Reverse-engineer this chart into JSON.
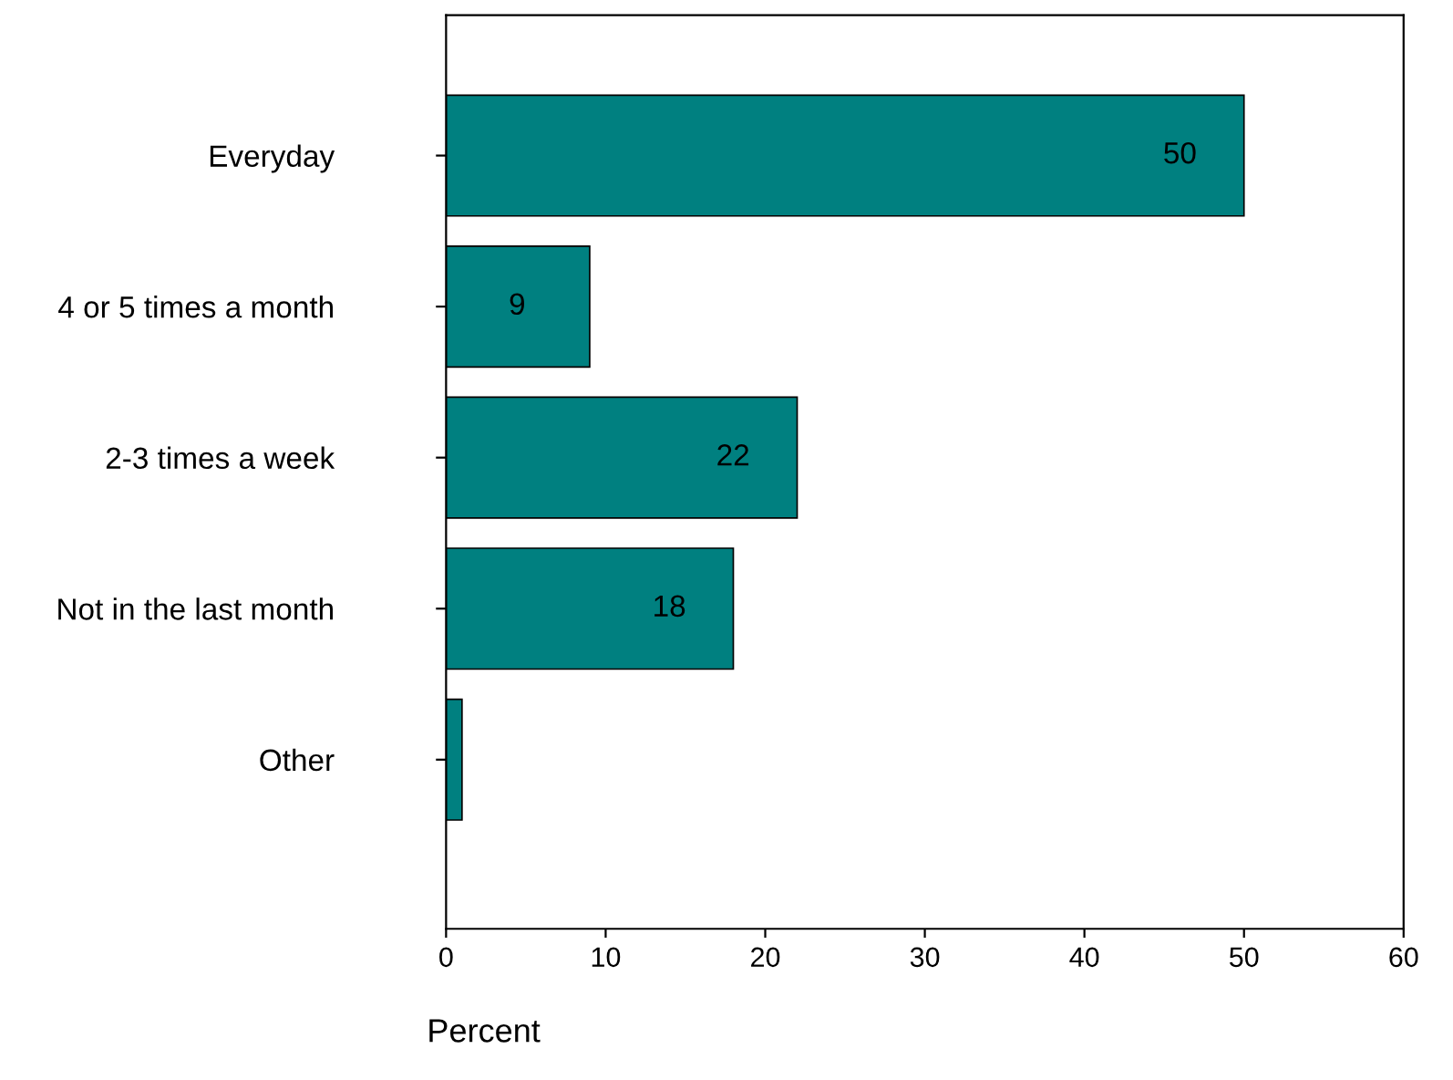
{
  "chart_data": {
    "type": "bar",
    "orientation": "horizontal",
    "categories": [
      "Everyday",
      "4 or 5 times a month",
      "2-3 times a week",
      "Not in the last month",
      "Other"
    ],
    "values": [
      50,
      9,
      22,
      18,
      1
    ],
    "value_labels": [
      "50",
      "9",
      "22",
      "18",
      null
    ],
    "color": "#008080",
    "xlabel": "Percent",
    "xlim": [
      0,
      60
    ],
    "xticks": [
      0,
      10,
      20,
      30,
      40,
      50,
      60
    ],
    "grid": false,
    "legend": false
  }
}
